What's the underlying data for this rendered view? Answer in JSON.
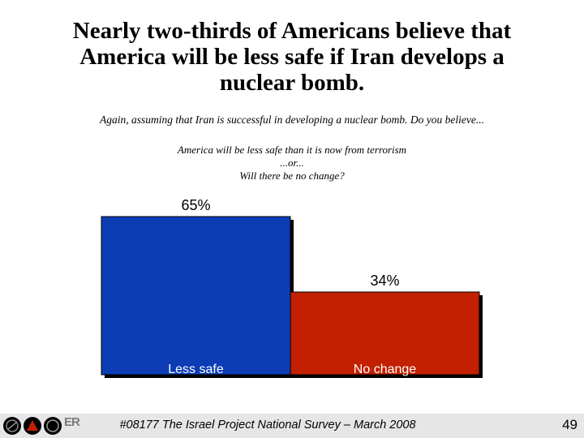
{
  "slide": {
    "title_lines": [
      "Nearly two-thirds of Americans believe that",
      "America will be less safe if Iran develops a",
      "nuclear bomb."
    ],
    "question": "Again, assuming that Iran is successful in developing a nuclear bomb.  Do you believe...",
    "options": [
      "America will be less safe than it is now from terrorism",
      "...or...",
      "Will there be no change?"
    ]
  },
  "chart_data": {
    "type": "bar",
    "categories": [
      "Less safe",
      "No change"
    ],
    "values": [
      65,
      34
    ],
    "value_labels": [
      "65%",
      "34%"
    ],
    "unit": "%",
    "colors": [
      "#0c3db5",
      "#c22000"
    ],
    "ylim": [
      0,
      70
    ],
    "title": "",
    "xlabel": "",
    "ylabel": ""
  },
  "footer": {
    "logo_text": "ER",
    "source": "#08177 The Israel Project National Survey – March 2008",
    "page_number": "49"
  }
}
